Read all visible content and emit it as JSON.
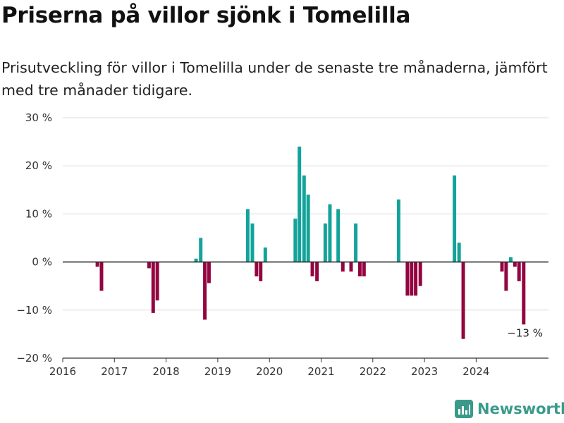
{
  "header": {
    "title": "Priserna på villor sjönk i Tomelilla",
    "subtitle": "Prisutveckling för villor i Tomelilla under de senaste tre månaderna, jämfört med tre månader tidigare."
  },
  "brand": {
    "name": "Newsworthy",
    "color": "#3a9a8a",
    "icon": "newsworthy-logo-icon"
  },
  "chart_data": {
    "type": "bar",
    "x_unit": "year (decimal)",
    "xlim": [
      2016,
      2025.4
    ],
    "ylim": [
      -20,
      30
    ],
    "y_ticks": [
      -20,
      -10,
      0,
      10,
      20,
      30
    ],
    "y_tick_labels": [
      "−20 %",
      "−10 %",
      "0 %",
      "10 %",
      "20 %",
      "30 %"
    ],
    "x_ticks": [
      2016,
      2017,
      2018,
      2019,
      2020,
      2021,
      2022,
      2023,
      2024
    ],
    "x_tick_labels": [
      "2016",
      "2017",
      "2018",
      "2019",
      "2020",
      "2021",
      "2022",
      "2023",
      "2024"
    ],
    "grid": true,
    "colors": {
      "positive": "#13a39a",
      "negative": "#930540"
    },
    "bars": [
      {
        "x": 2016.67,
        "value": -1
      },
      {
        "x": 2016.75,
        "value": -6
      },
      {
        "x": 2017.67,
        "value": -1.3
      },
      {
        "x": 2017.75,
        "value": -10.6
      },
      {
        "x": 2017.83,
        "value": -8
      },
      {
        "x": 2018.58,
        "value": 0.7
      },
      {
        "x": 2018.67,
        "value": 5
      },
      {
        "x": 2018.75,
        "value": -12
      },
      {
        "x": 2018.83,
        "value": -4.4
      },
      {
        "x": 2019.58,
        "value": 11
      },
      {
        "x": 2019.67,
        "value": 8
      },
      {
        "x": 2019.75,
        "value": -3
      },
      {
        "x": 2019.83,
        "value": -4
      },
      {
        "x": 2019.92,
        "value": 3
      },
      {
        "x": 2020.5,
        "value": 9
      },
      {
        "x": 2020.58,
        "value": 24
      },
      {
        "x": 2020.67,
        "value": 18
      },
      {
        "x": 2020.75,
        "value": 14
      },
      {
        "x": 2020.83,
        "value": -3
      },
      {
        "x": 2020.92,
        "value": -4
      },
      {
        "x": 2021.08,
        "value": 8
      },
      {
        "x": 2021.17,
        "value": 12
      },
      {
        "x": 2021.33,
        "value": 11
      },
      {
        "x": 2021.42,
        "value": -2
      },
      {
        "x": 2021.58,
        "value": -2
      },
      {
        "x": 2021.67,
        "value": 8
      },
      {
        "x": 2021.75,
        "value": -3
      },
      {
        "x": 2021.83,
        "value": -3
      },
      {
        "x": 2022.5,
        "value": 13
      },
      {
        "x": 2022.67,
        "value": -7
      },
      {
        "x": 2022.75,
        "value": -7
      },
      {
        "x": 2022.83,
        "value": -7
      },
      {
        "x": 2022.92,
        "value": -5
      },
      {
        "x": 2023.58,
        "value": 18
      },
      {
        "x": 2023.67,
        "value": 4
      },
      {
        "x": 2023.75,
        "value": -16
      },
      {
        "x": 2024.5,
        "value": -2
      },
      {
        "x": 2024.58,
        "value": -6
      },
      {
        "x": 2024.67,
        "value": 1
      },
      {
        "x": 2024.75,
        "value": -1
      },
      {
        "x": 2024.83,
        "value": -4
      },
      {
        "x": 2024.92,
        "value": -13
      }
    ],
    "annotation": {
      "text": "−13 %",
      "x": 2024.92,
      "value": -13
    }
  }
}
